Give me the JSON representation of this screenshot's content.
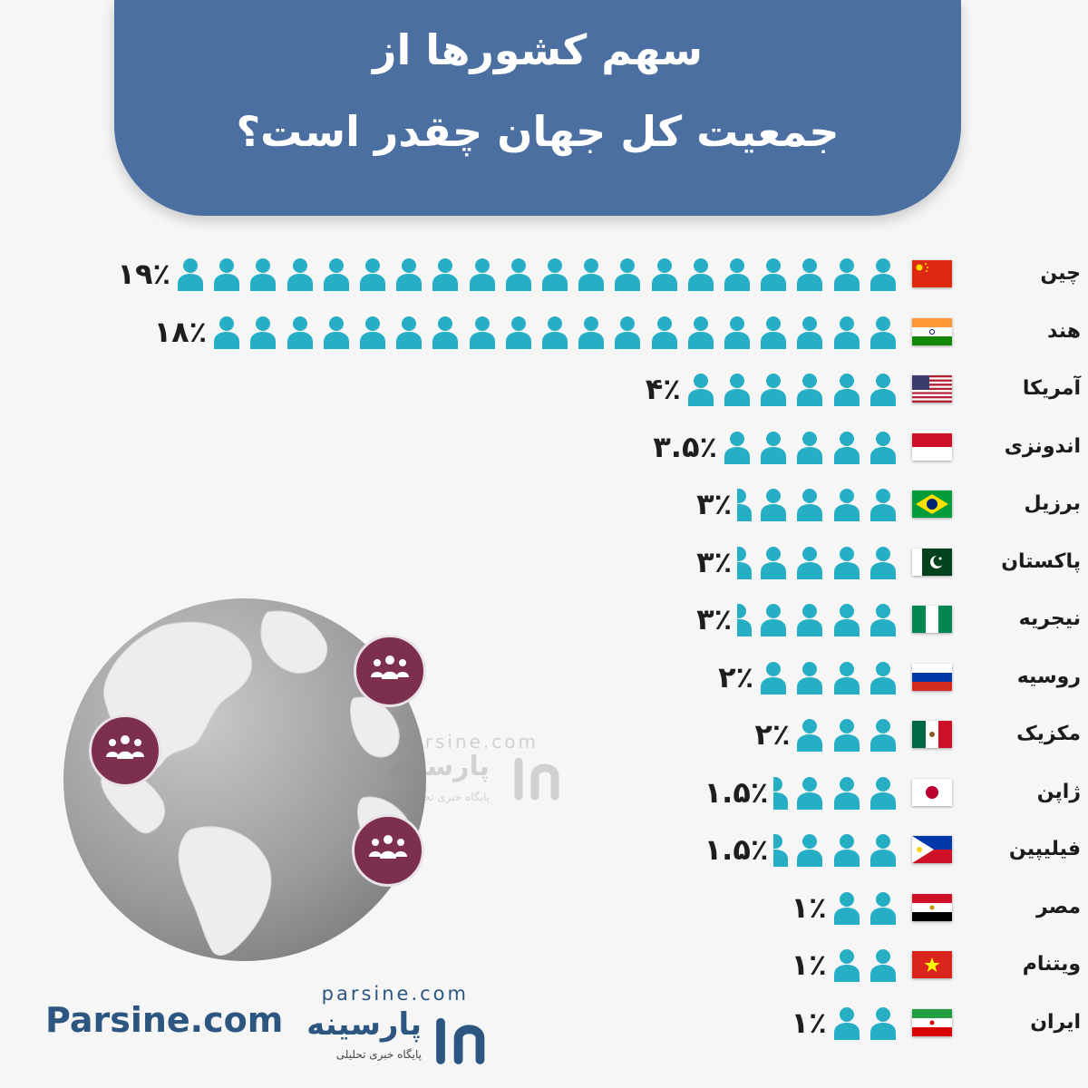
{
  "title_line1": "سهم کشورها از",
  "title_line2": "جمعیت کل جهان چقدر است؟",
  "colors": {
    "header": "#4a6fa0",
    "icon": "#26afc4",
    "badge": "#7d2f4f",
    "brand": "#2c5680",
    "globe": "#9a9a9a"
  },
  "chart_data": {
    "type": "bar",
    "categories": [
      "چین",
      "هند",
      "آمریکا",
      "اندونزی",
      "برزیل",
      "پاکستان",
      "نیجریه",
      "روسیه",
      "مکزیک",
      "ژاپن",
      "فیلیپین",
      "مصر",
      "ویتنام",
      "ایران"
    ],
    "values": [
      19,
      18,
      4,
      3.5,
      3,
      3,
      3,
      2,
      2,
      1.5,
      1.5,
      1,
      1,
      1
    ],
    "value_labels": [
      "۱۹٪",
      "۱۸٪",
      "۴٪",
      "۳.۵٪",
      "۳٪",
      "۳٪",
      "۳٪",
      "۲٪",
      "۲٪",
      "۱.۵٪",
      "۱.۵٪",
      "۱٪",
      "۱٪",
      "۱٪"
    ],
    "icons_full": [
      20,
      19,
      6,
      5,
      4,
      4,
      4,
      4,
      3,
      3,
      3,
      2,
      2,
      2
    ],
    "icons_partial": [
      0,
      0,
      0,
      0,
      1,
      1,
      1,
      0,
      0,
      1,
      1,
      0,
      0,
      0
    ],
    "flags": [
      "china",
      "india",
      "usa",
      "indonesia",
      "brazil",
      "pakistan",
      "nigeria",
      "russia",
      "mexico",
      "japan",
      "philippines",
      "egypt",
      "vietnam",
      "iran"
    ]
  },
  "footer": {
    "site": "Parsine.com",
    "logo_latin": "parsine.com",
    "logo_persian": "پارسینه",
    "logo_tagline": "پایگاه خبری تحلیلی"
  }
}
